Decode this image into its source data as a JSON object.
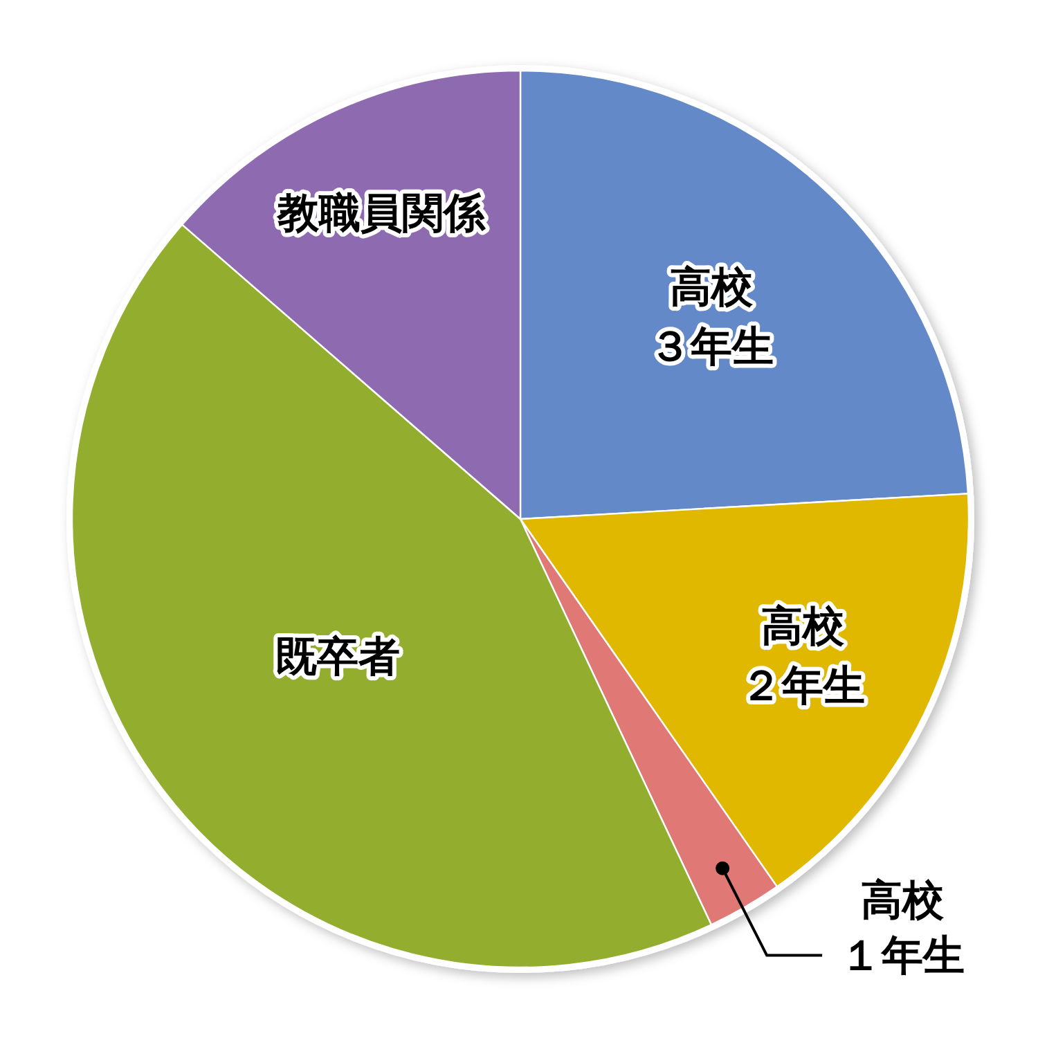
{
  "chart_data": {
    "type": "pie",
    "categories": [
      "高校３年生",
      "高校２年生",
      "高校１年生",
      "既卒者",
      "教職員関係"
    ],
    "values": [
      24.1,
      16.2,
      2.7,
      43.4,
      13.6
    ],
    "colors": [
      "#6389c9",
      "#e0b800",
      "#e07876",
      "#93ad2f",
      "#8e6bb0"
    ]
  }
}
